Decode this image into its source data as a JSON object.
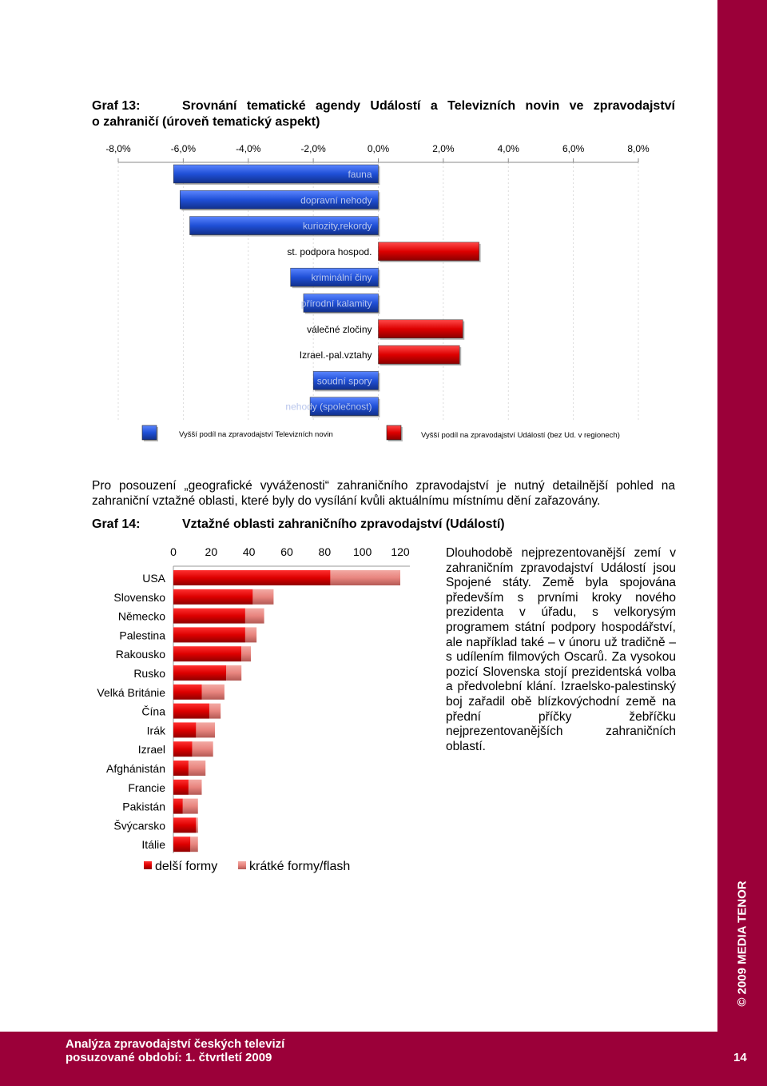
{
  "graf13": {
    "label": "Graf 13:",
    "title_line1": "Srovnání tematické agendy Událostí a Televizních novin ve zpravodajství",
    "title_line2": "o zahraničí (úroveň tematický aspekt)"
  },
  "graf14": {
    "label": "Graf 14:",
    "title": "Vztažné oblasti zahraničního zpravodajství (Událostí)"
  },
  "paragraph": "Pro posouzení „geografické vyváženosti“ zahraničního zpravodajství je nutný detailnější pohled na zahraniční vztažné oblasti, které byly do vysílání kvůli aktuálnímu místnímu dění zařazovány.",
  "side_paragraph": "Dlouhodobě nejprezentovanější zemí v zahraničním zpravodajství Událostí jsou Spojené státy. Země byla spojována především s prvními kroky nového prezidenta v úřadu, s velkorysým programem státní podpory hospodářství, ale například také – v únoru už tradičně – s udílením filmových Oscarů. Za vysokou pozicí Slovenska stojí prezidentská volba a předvolební klání. Izraelsko-palestinský boj zařadil obě blízkovýchodní země na přední příčky žebříčku nejprezentovanějších zahraničních oblastí.",
  "sidebar": {
    "copyright": "© 2009 MEDIA TENOR"
  },
  "footer": {
    "line1": "Analýza zpravodajství českých televizí",
    "line2": "posuzované období: 1. čtvrtletí 2009",
    "page_number": "14"
  },
  "colors": {
    "brand": "#9b0039",
    "blue": "#1f4fd6",
    "red": "#dd0000",
    "pink": "#e8857f"
  },
  "chart_data": [
    {
      "type": "bar",
      "orientation": "horizontal",
      "x_ticks": [
        "-8,0%",
        "-6,0%",
        "-4,0%",
        "-2,0%",
        "0,0%",
        "2,0%",
        "4,0%",
        "6,0%",
        "8,0%"
      ],
      "xlim": [
        -8,
        8
      ],
      "categories": [
        "fauna",
        "dopravní nehody",
        "kuriozity,rekordy",
        "st. podpora hospod.",
        "kriminální činy",
        "přírodní kalamity",
        "válečné zločiny",
        "Izrael.-pal.vztahy",
        "soudní spory",
        "nehody (společnost)"
      ],
      "values": [
        -6.3,
        -6.1,
        -5.8,
        3.1,
        -2.7,
        -2.3,
        2.6,
        2.5,
        -2.0,
        -2.1
      ],
      "legend": [
        "Vyšší podíl na zpravodajství Televizních novin",
        "Vyšší podíl na zpravodajství Událostí (bez Ud. v regionech)"
      ]
    },
    {
      "type": "bar",
      "orientation": "horizontal",
      "stacked": true,
      "x_ticks": [
        "0",
        "20",
        "40",
        "60",
        "80",
        "100",
        "120"
      ],
      "xlim": [
        0,
        120
      ],
      "categories": [
        "USA",
        "Slovensko",
        "Německo",
        "Palestina",
        "Rakousko",
        "Rusko",
        "Velká Británie",
        "Čína",
        "Irák",
        "Izrael",
        "Afghánistán",
        "Francie",
        "Pakistán",
        "Švýcarsko",
        "Itálie"
      ],
      "series": [
        {
          "name": "delší formy",
          "values": [
            83,
            42,
            38,
            38,
            36,
            28,
            15,
            19,
            12,
            10,
            8,
            8,
            5,
            12,
            9
          ]
        },
        {
          "name": "krátké formy/flash",
          "values": [
            37,
            11,
            10,
            6,
            5,
            8,
            12,
            6,
            10,
            11,
            9,
            7,
            8,
            1,
            4
          ]
        }
      ],
      "legend_position": "bottom"
    }
  ]
}
